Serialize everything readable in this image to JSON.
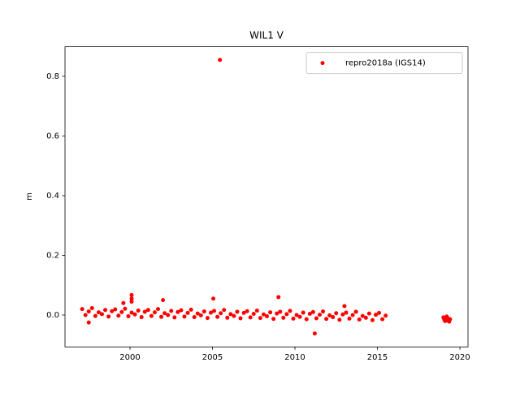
{
  "chart_data": {
    "type": "scatter",
    "title": "WIL1 V",
    "y_label": "m",
    "xlim": [
      1996.06,
      2020.49
    ],
    "ylim": [
      -0.1067,
      0.899
    ],
    "xticks": [
      2000,
      2005,
      2010,
      2015,
      2020
    ],
    "yticks": [
      {
        "value": 0,
        "label": "0.0"
      },
      0.2,
      0.4,
      0.6,
      0.8
    ],
    "legend": "upper right",
    "grid": false,
    "series": [
      {
        "name": "repro2018a (IGS14)",
        "color": "#ff0000",
        "x": [
          1997.1,
          1997.3,
          1997.5,
          1997.7,
          1997.9,
          1998.1,
          1998.3,
          1998.5,
          1998.7,
          1998.9,
          1999.1,
          1999.3,
          1999.5,
          1999.7,
          1999.9,
          2000.1,
          2000.3,
          2000.5,
          2000.7,
          2000.9,
          2001.1,
          2001.3,
          2001.5,
          2001.7,
          2001.9,
          2002.1,
          2002.3,
          2002.5,
          2002.7,
          2002.9,
          2003.1,
          2003.3,
          2003.5,
          2003.7,
          2003.9,
          2004.1,
          2004.3,
          2004.5,
          2004.7,
          2004.9,
          2005.1,
          2005.3,
          2005.5,
          2005.7,
          2005.9,
          2006.1,
          2006.3,
          2006.5,
          2006.7,
          2006.9,
          2007.1,
          2007.3,
          2007.5,
          2007.7,
          2007.9,
          2008.1,
          2008.3,
          2008.5,
          2008.7,
          2008.9,
          2009.1,
          2009.3,
          2009.5,
          2009.7,
          2009.9,
          2010.1,
          2010.3,
          2010.5,
          2010.7,
          2010.9,
          2011.1,
          2011.3,
          2011.5,
          2011.7,
          2011.9,
          2012.1,
          2012.3,
          2012.5,
          2012.7,
          2012.9,
          2013.1,
          2013.3,
          2013.5,
          2013.7,
          2013.9,
          2014.1,
          2014.3,
          2014.5,
          2014.7,
          2014.9,
          2015.1,
          2015.3,
          2015.5,
          2019.0,
          2019.05,
          2019.1,
          2019.15,
          2019.2,
          2019.25,
          2019.3,
          2019.35,
          2019.4,
          2019.2,
          1997.5,
          2000.1,
          2000.1,
          2000.1,
          2002.0,
          2005.05,
          2005.45,
          2009.0,
          2011.2,
          1999.6,
          2013.0
        ],
        "values": [
          0.02,
          0.0,
          0.012,
          0.023,
          -0.003,
          0.009,
          0.003,
          0.017,
          -0.005,
          0.013,
          0.019,
          -0.002,
          0.01,
          0.021,
          -0.004,
          0.008,
          0.002,
          0.015,
          -0.007,
          0.011,
          0.017,
          -0.003,
          0.009,
          0.02,
          -0.006,
          0.006,
          0.0,
          0.014,
          -0.008,
          0.01,
          0.016,
          -0.005,
          0.007,
          0.018,
          -0.007,
          0.005,
          -0.001,
          0.012,
          -0.01,
          0.008,
          0.014,
          -0.006,
          0.006,
          0.017,
          -0.009,
          0.003,
          -0.003,
          0.011,
          -0.011,
          0.007,
          0.013,
          -0.008,
          0.004,
          0.015,
          -0.01,
          0.002,
          -0.004,
          0.009,
          -0.013,
          0.005,
          0.011,
          -0.009,
          0.003,
          0.014,
          -0.012,
          0.0,
          -0.006,
          0.008,
          -0.014,
          0.004,
          0.01,
          -0.011,
          0.001,
          0.012,
          -0.013,
          -0.001,
          -0.007,
          0.006,
          -0.016,
          0.002,
          0.008,
          -0.012,
          0.0,
          0.011,
          -0.015,
          -0.003,
          -0.009,
          0.005,
          -0.017,
          0.001,
          0.007,
          -0.014,
          -0.002,
          -0.008,
          -0.015,
          -0.02,
          -0.012,
          -0.018,
          -0.01,
          -0.016,
          -0.022,
          -0.014,
          -0.005,
          -0.025,
          0.067,
          0.055,
          0.045,
          0.05,
          0.055,
          0.855,
          0.06,
          -0.062,
          0.04,
          0.03
        ]
      }
    ]
  }
}
